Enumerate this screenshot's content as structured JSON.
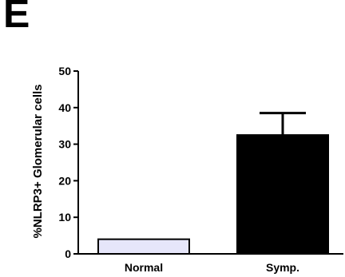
{
  "panel_label": "E",
  "chart_data": {
    "type": "bar",
    "title": "",
    "xlabel": "",
    "ylabel": "%NLRP3+  Glomerular cells",
    "categories": [
      "Normal",
      "Symp."
    ],
    "values": [
      4,
      32.5
    ],
    "error_upper": [
      0,
      6
    ],
    "ylim": [
      0,
      50
    ],
    "yticks": [
      0,
      10,
      20,
      30,
      40,
      50
    ],
    "grid": false,
    "legend": "none",
    "colors": [
      "#e6e6fa",
      "#000000"
    ]
  }
}
